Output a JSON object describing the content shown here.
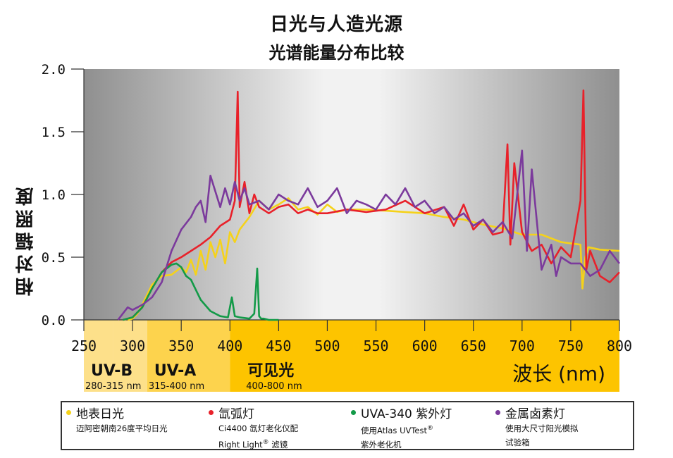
{
  "header": {
    "title": "日光与人造光源",
    "subtitle": "光谱能量分布比较"
  },
  "legend": {
    "items": [
      {
        "name": "地表日光",
        "color": "#f5d21a",
        "desc1": "迈阿密朝南26度平均日光",
        "desc2": ""
      },
      {
        "name": "氙弧灯",
        "color": "#e8212a",
        "desc1": "Ci4400 氙灯老化仪配",
        "desc2_pre": "Right Light",
        "desc2_sup": "®",
        "desc2_post": " 滤镜"
      },
      {
        "name": "UVA-340 紫外灯",
        "color": "#139a48",
        "desc1_pre": "使用Atlas UVTest",
        "desc1_sup": "®",
        "desc2": "紫外老化机"
      },
      {
        "name": "金属卤素灯",
        "color": "#7b3a9c",
        "desc1": "使用大尺寸阳光模拟",
        "desc2": "试验箱"
      }
    ]
  },
  "chart_data": {
    "type": "line",
    "title": "日光与人造光源",
    "subtitle": "光谱能量分布比较",
    "ylabel": "相对辐照度",
    "xlabel": "波长 (nm)",
    "xlim": [
      250,
      800
    ],
    "ylim": [
      0,
      2.0
    ],
    "yticks": [
      "0.0",
      "0.5",
      "1.0",
      "1.5",
      "2.0"
    ],
    "xticks": [
      "250",
      "300",
      "350",
      "400",
      "450",
      "500",
      "550",
      "600",
      "650",
      "700",
      "750",
      "800"
    ],
    "bands": [
      {
        "label": "UV-B",
        "range_label": "280-315 nm",
        "from": 280,
        "to": 315,
        "color": "#fde08a"
      },
      {
        "label": "UV-A",
        "range_label": "315-400 nm",
        "from": 315,
        "to": 400,
        "color": "#fdd34d"
      },
      {
        "label": "可见光",
        "range_label": "400-800 nm",
        "from": 400,
        "to": 800,
        "color": "#fdc400"
      }
    ],
    "series": [
      {
        "name": "地表日光",
        "color": "#f5d21a",
        "x": [
          295,
          300,
          305,
          310,
          320,
          330,
          340,
          350,
          355,
          360,
          365,
          370,
          375,
          380,
          385,
          390,
          395,
          400,
          405,
          410,
          420,
          430,
          440,
          450,
          460,
          470,
          480,
          490,
          500,
          510,
          520,
          540,
          560,
          580,
          600,
          620,
          640,
          660,
          680,
          700,
          720,
          740,
          760,
          762,
          765,
          768,
          780,
          800
        ],
        "y": [
          0,
          0.01,
          0.05,
          0.12,
          0.28,
          0.35,
          0.36,
          0.42,
          0.38,
          0.48,
          0.36,
          0.55,
          0.4,
          0.62,
          0.5,
          0.64,
          0.45,
          0.7,
          0.62,
          0.72,
          0.82,
          0.95,
          0.88,
          0.92,
          0.97,
          0.88,
          0.9,
          0.84,
          0.92,
          0.86,
          0.88,
          0.88,
          0.87,
          0.86,
          0.85,
          0.82,
          0.8,
          0.76,
          0.73,
          0.68,
          0.68,
          0.62,
          0.6,
          0.25,
          0.5,
          0.58,
          0.56,
          0.55
        ]
      },
      {
        "name": "氙弧灯",
        "color": "#e8212a",
        "x": [
          290,
          300,
          310,
          320,
          330,
          340,
          350,
          360,
          370,
          380,
          390,
          400,
          405,
          408,
          410,
          415,
          420,
          425,
          430,
          440,
          450,
          460,
          470,
          480,
          490,
          500,
          520,
          540,
          560,
          580,
          600,
          620,
          630,
          640,
          650,
          660,
          670,
          680,
          685,
          688,
          692,
          700,
          710,
          720,
          730,
          740,
          750,
          760,
          763,
          766,
          770,
          780,
          790,
          800
        ],
        "y": [
          0,
          0.02,
          0.1,
          0.25,
          0.38,
          0.46,
          0.5,
          0.55,
          0.6,
          0.66,
          0.75,
          0.8,
          0.95,
          1.82,
          0.9,
          1.1,
          0.85,
          1.0,
          0.9,
          0.85,
          0.9,
          0.92,
          0.85,
          0.88,
          0.85,
          0.85,
          0.88,
          0.86,
          0.88,
          0.95,
          0.85,
          0.9,
          0.75,
          0.92,
          0.72,
          0.8,
          0.68,
          0.7,
          1.4,
          0.6,
          1.25,
          0.7,
          0.55,
          0.6,
          0.45,
          0.58,
          0.5,
          0.95,
          1.83,
          0.4,
          0.55,
          0.35,
          0.3,
          0.38
        ]
      },
      {
        "name": "UVA-340 紫外灯",
        "color": "#139a48",
        "x": [
          290,
          300,
          310,
          320,
          330,
          340,
          345,
          350,
          355,
          360,
          365,
          370,
          380,
          390,
          398,
          402,
          405,
          410,
          420,
          425,
          428,
          430,
          432,
          435,
          440,
          450
        ],
        "y": [
          0,
          0.02,
          0.1,
          0.25,
          0.38,
          0.44,
          0.45,
          0.42,
          0.35,
          0.32,
          0.24,
          0.16,
          0.07,
          0.03,
          0.02,
          0.18,
          0.03,
          0.02,
          0.01,
          0.05,
          0.41,
          0.03,
          0.01,
          0.01,
          0.0,
          0.0
        ]
      },
      {
        "name": "金属卤素灯",
        "color": "#7b3a9c",
        "x": [
          285,
          290,
          295,
          300,
          310,
          320,
          330,
          340,
          350,
          360,
          365,
          370,
          375,
          380,
          390,
          395,
          400,
          405,
          410,
          415,
          420,
          430,
          440,
          450,
          460,
          470,
          480,
          490,
          500,
          510,
          520,
          530,
          540,
          550,
          560,
          570,
          580,
          590,
          600,
          610,
          620,
          630,
          640,
          650,
          660,
          670,
          680,
          690,
          700,
          705,
          710,
          720,
          730,
          735,
          740,
          750,
          760,
          770,
          780,
          790,
          800
        ],
        "y": [
          0,
          0.05,
          0.1,
          0.08,
          0.12,
          0.18,
          0.3,
          0.55,
          0.72,
          0.82,
          0.9,
          0.95,
          0.78,
          1.15,
          0.9,
          1.05,
          0.92,
          1.1,
          0.95,
          1.05,
          0.92,
          0.95,
          0.88,
          1.0,
          0.95,
          0.92,
          1.05,
          0.9,
          0.95,
          1.05,
          0.85,
          0.95,
          0.92,
          0.88,
          1.0,
          0.92,
          1.05,
          0.9,
          0.95,
          0.85,
          0.9,
          0.8,
          0.85,
          0.75,
          0.8,
          0.7,
          0.78,
          0.65,
          1.35,
          0.55,
          1.2,
          0.4,
          0.6,
          0.35,
          0.5,
          0.45,
          0.45,
          0.35,
          0.4,
          0.55,
          0.45
        ]
      }
    ]
  }
}
